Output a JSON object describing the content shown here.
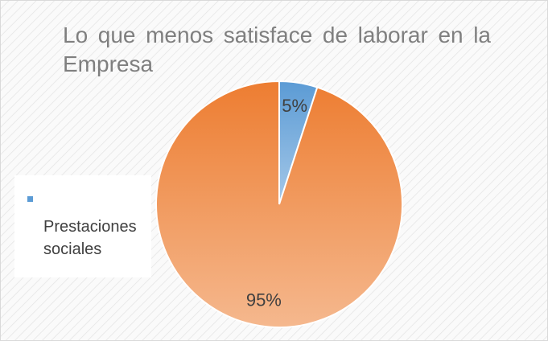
{
  "chart_data": {
    "type": "pie",
    "title": "Lo que menos satisface de laborar en la Empresa",
    "categories": [
      null,
      "Prestaciones sociales"
    ],
    "values": [
      5,
      95
    ],
    "value_labels": [
      "5%",
      "95%"
    ],
    "colors": [
      "#5b9bd5",
      "#ed7d31"
    ]
  }
}
